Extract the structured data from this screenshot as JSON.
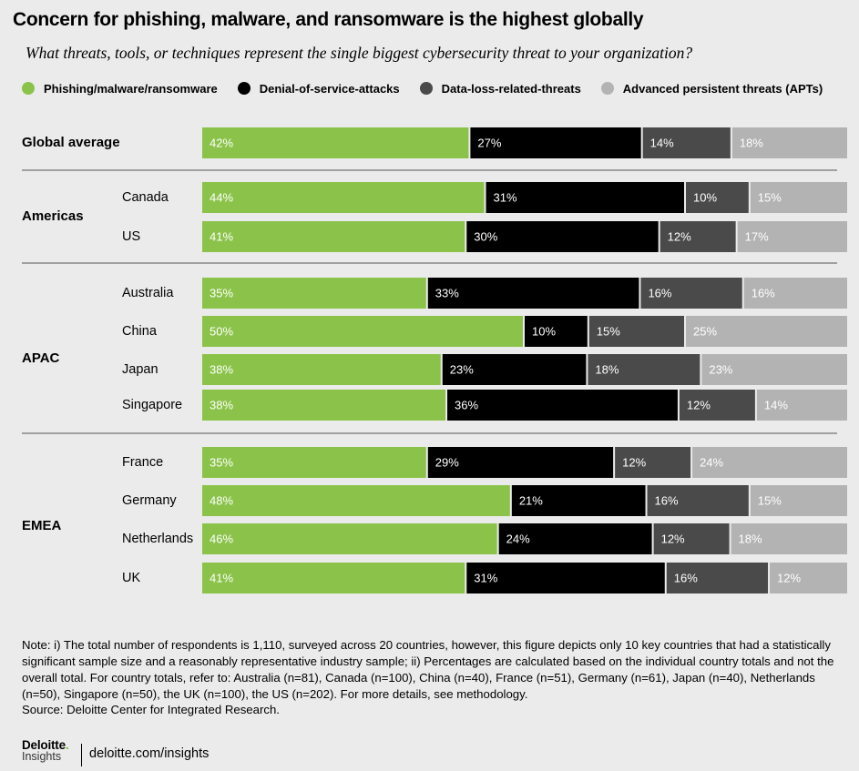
{
  "header": {
    "title": "Concern for phishing, malware, and ransomware is the highest globally",
    "subtitle": "What threats, tools, or techniques represent the single biggest cybersecurity threat to your organization?"
  },
  "legend": [
    {
      "label": "Phishing/malware/ransomware",
      "color": "#8bc34a"
    },
    {
      "label": "Denial-of-service-attacks",
      "color": "#000000"
    },
    {
      "label": "Data-loss-related-threats",
      "color": "#4a4a4a"
    },
    {
      "label": "Advanced persistent threats (APTs)",
      "color": "#b3b3b3"
    }
  ],
  "chart_data": {
    "type": "bar",
    "orientation": "horizontal",
    "stacked": true,
    "series": [
      {
        "name": "Phishing/malware/ransomware",
        "color": "#8bc34a"
      },
      {
        "name": "Denial-of-service-attacks",
        "color": "#000000"
      },
      {
        "name": "Data-loss-related-threats",
        "color": "#4a4a4a"
      },
      {
        "name": "Advanced persistent threats (APTs)",
        "color": "#b3b3b3"
      }
    ],
    "groups": [
      {
        "name": "Global average",
        "rows": [
          {
            "label": "",
            "values": [
              42,
              27,
              14,
              18
            ]
          }
        ]
      },
      {
        "name": "Americas",
        "rows": [
          {
            "label": "Canada",
            "values": [
              44,
              31,
              10,
              15
            ]
          },
          {
            "label": "US",
            "values": [
              41,
              30,
              12,
              17
            ]
          }
        ]
      },
      {
        "name": "APAC",
        "rows": [
          {
            "label": "Australia",
            "values": [
              35,
              33,
              16,
              16
            ]
          },
          {
            "label": "China",
            "values": [
              50,
              10,
              15,
              25
            ]
          },
          {
            "label": "Japan",
            "values": [
              38,
              23,
              18,
              23
            ]
          },
          {
            "label": "Singapore",
            "values": [
              38,
              36,
              12,
              14
            ]
          }
        ]
      },
      {
        "name": "EMEA",
        "rows": [
          {
            "label": "France",
            "values": [
              35,
              29,
              12,
              24
            ]
          },
          {
            "label": "Germany",
            "values": [
              48,
              21,
              16,
              15
            ]
          },
          {
            "label": "Netherlands",
            "values": [
              46,
              24,
              12,
              18
            ]
          },
          {
            "label": "UK",
            "values": [
              41,
              31,
              16,
              12
            ]
          }
        ]
      }
    ]
  },
  "footer": {
    "note": "Note: i) The total number of respondents is 1,110, surveyed across 20 countries, however, this figure depicts only 10 key countries that had a statistically significant sample size  and a reasonably representative  industry sample; ii) Percentages are calculated based on the individual country totals and not the overall total. For country totals, refer to: Australia (n=81), Canada (n=100), China (n=40), France (n=51), Germany (n=61), Japan (n=40), Netherlands (n=50), Singapore (n=50), the UK (n=100), the US (n=202). For more details, see methodology.",
    "source": "Source: Deloitte Center for Integrated Research.",
    "logo_main": "Deloitte",
    "logo_dot": ".",
    "logo_sub": "Insights",
    "url": "deloitte.com/insights"
  }
}
